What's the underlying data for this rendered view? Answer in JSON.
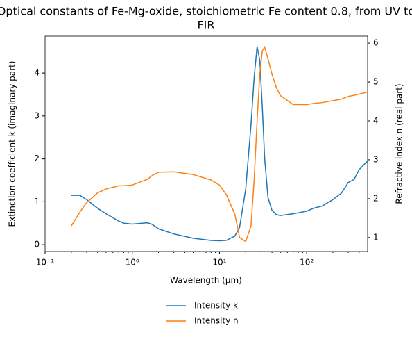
{
  "chart_data": {
    "type": "line",
    "title": "Optical constants of Fe-Mg-oxide, stoichiometric Fe content 0.8, from UV to FIR",
    "x_label": "Wavelength (μm)",
    "y_label": "Extinction coefficient k (imaginary part)",
    "y2_label": "Refractive index n (real part)",
    "x_scale": "log",
    "x": [
      0.2,
      0.25,
      0.3,
      0.4,
      0.5,
      0.7,
      0.8,
      1.0,
      1.5,
      1.7,
      2,
      3,
      5,
      8,
      10,
      12,
      15,
      17,
      20,
      23,
      25,
      27,
      29,
      31,
      33,
      36,
      40,
      45,
      50,
      70,
      100,
      120,
      150,
      200,
      250,
      300,
      350,
      400,
      500
    ],
    "series": [
      {
        "name": "Intensity k",
        "color": "#1f77b4",
        "axis": "y",
        "values": [
          1.15,
          1.15,
          1.05,
          0.85,
          0.72,
          0.55,
          0.5,
          0.48,
          0.51,
          0.47,
          0.37,
          0.25,
          0.15,
          0.1,
          0.09,
          0.1,
          0.2,
          0.4,
          1.3,
          2.8,
          3.9,
          4.62,
          4.3,
          3.2,
          2.0,
          1.1,
          0.8,
          0.7,
          0.68,
          0.72,
          0.78,
          0.85,
          0.9,
          1.05,
          1.2,
          1.45,
          1.52,
          1.75,
          1.95
        ]
      },
      {
        "name": "Intensity n",
        "color": "#ff7f0e",
        "axis": "y2",
        "values": [
          1.3,
          1.65,
          1.9,
          2.15,
          2.25,
          2.33,
          2.33,
          2.35,
          2.5,
          2.6,
          2.68,
          2.69,
          2.62,
          2.48,
          2.35,
          2.1,
          1.6,
          1.0,
          0.9,
          1.3,
          2.5,
          4.0,
          5.2,
          5.8,
          5.9,
          5.6,
          5.2,
          4.85,
          4.65,
          4.42,
          4.42,
          4.45,
          4.47,
          4.52,
          4.56,
          4.63,
          4.66,
          4.69,
          4.74
        ]
      }
    ],
    "xlim": [
      0.1,
      500
    ],
    "xticks": [
      {
        "value": 0.1,
        "label": "10⁻¹"
      },
      {
        "value": 1,
        "label": "10⁰"
      },
      {
        "value": 10,
        "label": "10¹"
      },
      {
        "value": 100,
        "label": "10²"
      }
    ],
    "ylim": [
      -0.16,
      4.86
    ],
    "yticks": [
      0,
      1,
      2,
      3,
      4
    ],
    "y2lim": [
      0.64,
      6.18
    ],
    "y2ticks": [
      1,
      2,
      3,
      4,
      5,
      6
    ],
    "legend": "below"
  }
}
